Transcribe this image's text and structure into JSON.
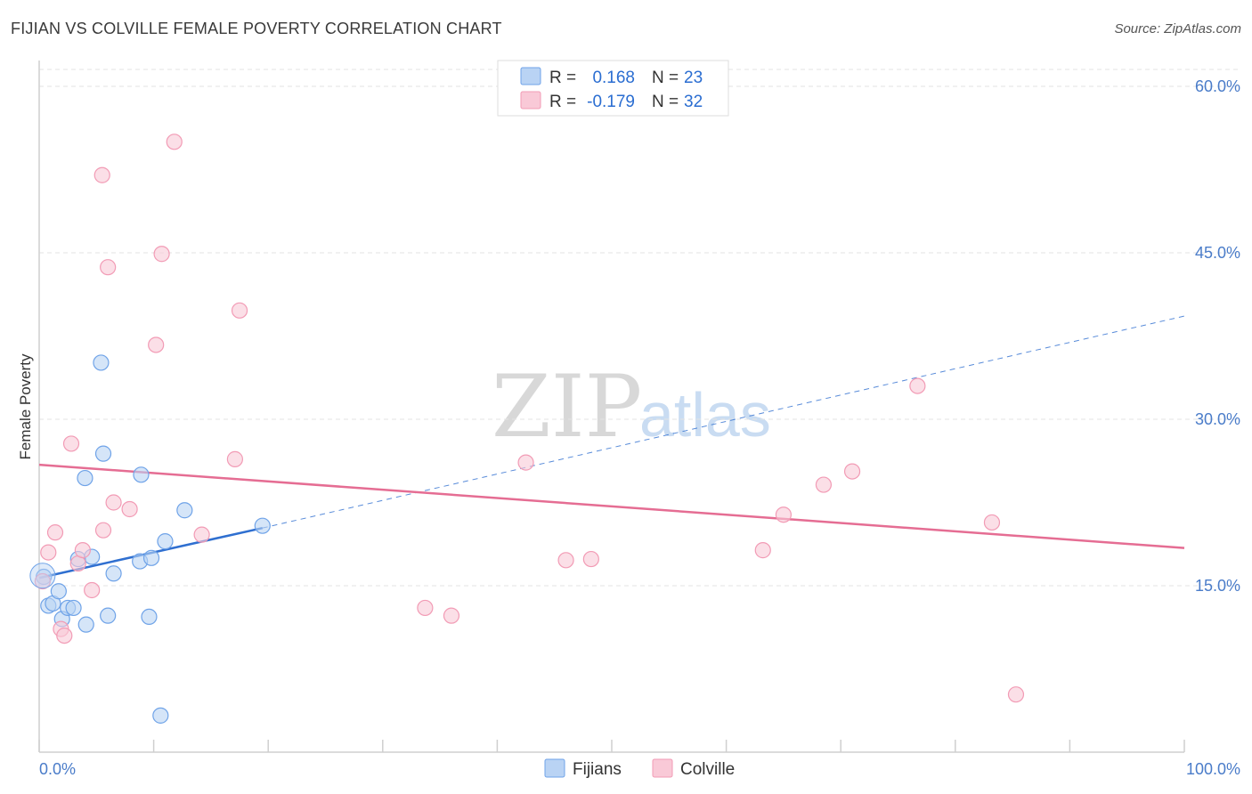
{
  "title": "FIJIAN VS COLVILLE FEMALE POVERTY CORRELATION CHART",
  "source": "Source: ZipAtlas.com",
  "chart_data": {
    "type": "scatter",
    "title": "FIJIAN VS COLVILLE FEMALE POVERTY CORRELATION CHART",
    "xlabel": "",
    "ylabel": "Female Poverty",
    "xlim": [
      0,
      100
    ],
    "ylim": [
      0,
      60
    ],
    "x_tick_labels": [
      "0.0%",
      "100.0%"
    ],
    "y_ticks": [
      15,
      30,
      45,
      60
    ],
    "y_tick_labels": [
      "15.0%",
      "30.0%",
      "45.0%",
      "60.0%"
    ],
    "grid": true,
    "legend_position": "top-center",
    "watermark": {
      "zip": "ZIP",
      "atlas": "atlas"
    },
    "series": [
      {
        "name": "Fijians",
        "color": "#6fa3e8",
        "fill": "#b9d3f4",
        "line_color": "#2f6fd0",
        "R": "0.168",
        "N": "23",
        "points": [
          [
            0.4,
            15.8
          ],
          [
            0.8,
            13.2
          ],
          [
            1.2,
            13.4
          ],
          [
            1.7,
            14.5
          ],
          [
            2.0,
            12.0
          ],
          [
            2.5,
            13.0
          ],
          [
            3.0,
            13.0
          ],
          [
            3.4,
            17.4
          ],
          [
            4.0,
            24.7
          ],
          [
            4.1,
            11.5
          ],
          [
            4.6,
            17.6
          ],
          [
            5.4,
            35.1
          ],
          [
            5.6,
            26.9
          ],
          [
            6.0,
            12.3
          ],
          [
            6.5,
            16.1
          ],
          [
            8.8,
            17.2
          ],
          [
            8.9,
            25.0
          ],
          [
            9.6,
            12.2
          ],
          [
            9.8,
            17.5
          ],
          [
            10.6,
            3.3
          ],
          [
            11.0,
            19.0
          ],
          [
            12.7,
            21.8
          ],
          [
            19.5,
            20.4
          ]
        ],
        "trend": {
          "x0": 0,
          "y0": 15.7,
          "x1": 19.5,
          "y1": 20.2,
          "dash_to_x": 100,
          "dash_to_y": 39.3
        }
      },
      {
        "name": "Colville",
        "color": "#f29bb5",
        "fill": "#f9c9d7",
        "line_color": "#e56d93",
        "R": "-0.179",
        "N": "32",
        "points": [
          [
            0.3,
            15.4
          ],
          [
            0.8,
            18.0
          ],
          [
            1.4,
            19.8
          ],
          [
            1.9,
            11.1
          ],
          [
            2.2,
            10.5
          ],
          [
            2.8,
            27.8
          ],
          [
            3.4,
            17.0
          ],
          [
            3.8,
            18.2
          ],
          [
            4.6,
            14.6
          ],
          [
            5.5,
            52.0
          ],
          [
            5.6,
            20.0
          ],
          [
            6.0,
            43.7
          ],
          [
            6.5,
            22.5
          ],
          [
            7.9,
            21.9
          ],
          [
            10.2,
            36.7
          ],
          [
            10.7,
            44.9
          ],
          [
            11.8,
            55.0
          ],
          [
            14.2,
            19.6
          ],
          [
            17.1,
            26.4
          ],
          [
            17.5,
            39.8
          ],
          [
            33.7,
            13.0
          ],
          [
            36.0,
            12.3
          ],
          [
            42.5,
            26.1
          ],
          [
            46.0,
            17.3
          ],
          [
            48.2,
            17.4
          ],
          [
            63.2,
            18.2
          ],
          [
            65.0,
            21.4
          ],
          [
            68.5,
            24.1
          ],
          [
            71.0,
            25.3
          ],
          [
            76.7,
            33.0
          ],
          [
            83.2,
            20.7
          ],
          [
            85.3,
            5.2
          ]
        ],
        "trend": {
          "x0": 0,
          "y0": 25.9,
          "x1": 100,
          "y1": 18.4
        }
      }
    ]
  }
}
